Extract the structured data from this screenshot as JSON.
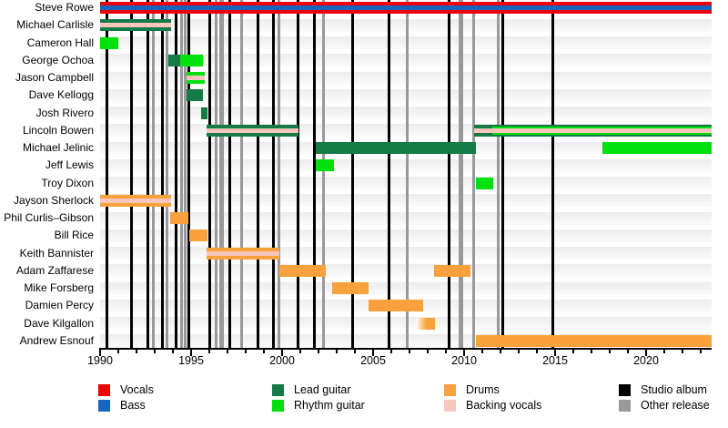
{
  "chart_data": {
    "type": "bar",
    "subtype": "band-membership-timeline",
    "title": "",
    "x_axis": {
      "min": 1990,
      "max": 2023.6,
      "major_ticks": [
        1990,
        1995,
        2000,
        2005,
        2010,
        2015,
        2020
      ],
      "minor_tick_every": 1,
      "grid": false
    },
    "colors": {
      "vocals": "#ef0000",
      "bass": "#1566c0",
      "lead_guitar": "#157a45",
      "rhythm_guitar": "#00e00e",
      "drums": "#f9a13c",
      "backing_vocals": "#f7c7bd",
      "studio_album": "#000000",
      "other_release": "#999999"
    },
    "members": [
      {
        "name": "Steve Rowe",
        "segments": [
          {
            "start": 1990,
            "end": 2023.6,
            "roles": [
              "vocals",
              "bass"
            ]
          }
        ]
      },
      {
        "name": "Michael Carlisle",
        "segments": [
          {
            "start": 1990,
            "end": 1993.9,
            "roles": [
              "lead_guitar",
              "backing_vocals"
            ]
          }
        ]
      },
      {
        "name": "Cameron Hall",
        "segments": [
          {
            "start": 1990,
            "end": 1991,
            "roles": [
              "rhythm_guitar"
            ]
          }
        ]
      },
      {
        "name": "George Ochoa",
        "segments": [
          {
            "start": 1993.75,
            "end": 1994.4,
            "roles": [
              "lead_guitar"
            ]
          },
          {
            "start": 1994.4,
            "end": 1995.65,
            "roles": [
              "rhythm_guitar"
            ]
          }
        ]
      },
      {
        "name": "Jason Campbell",
        "segments": [
          {
            "start": 1994.75,
            "end": 1995.75,
            "roles": [
              "rhythm_guitar",
              "backing_vocals"
            ]
          }
        ]
      },
      {
        "name": "Dave Kellogg",
        "segments": [
          {
            "start": 1994.75,
            "end": 1995.65,
            "roles": [
              "lead_guitar"
            ]
          }
        ]
      },
      {
        "name": "Josh Rivero",
        "segments": [
          {
            "start": 1995.55,
            "end": 1995.9,
            "roles": [
              "lead_guitar"
            ]
          }
        ]
      },
      {
        "name": "Lincoln Bowen",
        "segments": [
          {
            "start": 1995.85,
            "end": 2000.9,
            "roles": [
              "lead_guitar",
              "backing_vocals"
            ]
          },
          {
            "start": 2010.55,
            "end": 2011.55,
            "roles": [
              "lead_guitar",
              "backing_vocals"
            ]
          },
          {
            "start": 2011.55,
            "end": 2023.6,
            "roles": [
              "lead_guitar",
              "rhythm_guitar",
              "backing_vocals"
            ]
          }
        ]
      },
      {
        "name": "Michael Jelinic",
        "segments": [
          {
            "start": 2001.85,
            "end": 2010.65,
            "roles": [
              "lead_guitar"
            ]
          },
          {
            "start": 2017.6,
            "end": 2023.6,
            "roles": [
              "rhythm_guitar"
            ]
          }
        ]
      },
      {
        "name": "Jeff Lewis",
        "segments": [
          {
            "start": 2001.85,
            "end": 2002.85,
            "roles": [
              "rhythm_guitar"
            ]
          }
        ]
      },
      {
        "name": "Troy Dixon",
        "segments": [
          {
            "start": 2010.65,
            "end": 2011.6,
            "roles": [
              "rhythm_guitar"
            ]
          }
        ]
      },
      {
        "name": "Jayson Sherlock",
        "segments": [
          {
            "start": 1990,
            "end": 1993.9,
            "roles": [
              "drums",
              "backing_vocals"
            ]
          }
        ]
      },
      {
        "name": "Phil Curlis–Gibson",
        "segments": [
          {
            "start": 1993.85,
            "end": 1994.85,
            "roles": [
              "drums"
            ]
          }
        ]
      },
      {
        "name": "Bill Rice",
        "segments": [
          {
            "start": 1994.9,
            "end": 1995.9,
            "roles": [
              "drums"
            ]
          }
        ]
      },
      {
        "name": "Keith Bannister",
        "segments": [
          {
            "start": 1995.85,
            "end": 1999.85,
            "roles": [
              "drums",
              "backing_vocals"
            ]
          }
        ]
      },
      {
        "name": "Adam Zaffarese",
        "segments": [
          {
            "start": 1999.85,
            "end": 2002.4,
            "roles": [
              "drums"
            ]
          },
          {
            "start": 2008.35,
            "end": 2010.35,
            "roles": [
              "drums"
            ]
          }
        ]
      },
      {
        "name": "Mike Forsberg",
        "segments": [
          {
            "start": 2002.75,
            "end": 2004.75,
            "roles": [
              "drums"
            ]
          }
        ]
      },
      {
        "name": "Damien Percy",
        "segments": [
          {
            "start": 2004.75,
            "end": 2007.75,
            "roles": [
              "drums"
            ]
          }
        ]
      },
      {
        "name": "Dave Kilgallon",
        "segments": [
          {
            "start": 2007.35,
            "end": 2008.4,
            "roles": [
              "drums"
            ],
            "fade_left": true
          }
        ]
      },
      {
        "name": "Andrew Esnouf",
        "segments": [
          {
            "start": 2010.65,
            "end": 2023.6,
            "roles": [
              "drums"
            ]
          }
        ]
      }
    ],
    "releases": {
      "studio_albums": [
        1990.35,
        1991.7,
        1992.6,
        1993.4,
        1994.15,
        1994.85,
        1996.0,
        1997.1,
        1998.65,
        1999.5,
        2000.85,
        2001.75,
        2003.85,
        2005.85,
        2009.15,
        2012.1,
        2014.85
      ],
      "other_releases": [
        {
          "year": 1992.9
        },
        {
          "year": 1993.65
        },
        {
          "year": 1994.45
        },
        {
          "year": 1994.65
        },
        {
          "year": 1996.35
        },
        {
          "year": 1996.65,
          "wide": true
        },
        {
          "year": 1997.75
        },
        {
          "year": 1999.8
        },
        {
          "year": 2002.25
        },
        {
          "year": 2006.85
        },
        {
          "year": 2009.8,
          "wide": true
        },
        {
          "year": 2010.5
        },
        {
          "year": 2011.85
        }
      ]
    },
    "legend": {
      "position": "bottom",
      "items": [
        {
          "label": "Vocals",
          "color_key": "vocals",
          "col": 0,
          "row": 0
        },
        {
          "label": "Bass",
          "color_key": "bass",
          "col": 0,
          "row": 1
        },
        {
          "label": "Lead guitar",
          "color_key": "lead_guitar",
          "col": 1,
          "row": 0
        },
        {
          "label": "Rhythm guitar",
          "color_key": "rhythm_guitar",
          "col": 1,
          "row": 1
        },
        {
          "label": "Drums",
          "color_key": "drums",
          "col": 2,
          "row": 0
        },
        {
          "label": "Backing vocals",
          "color_key": "backing_vocals",
          "col": 2,
          "row": 1
        },
        {
          "label": "Studio album",
          "color_key": "studio_album",
          "col": 3,
          "row": 0
        },
        {
          "label": "Other release",
          "color_key": "other_release",
          "col": 3,
          "row": 1
        }
      ]
    }
  }
}
